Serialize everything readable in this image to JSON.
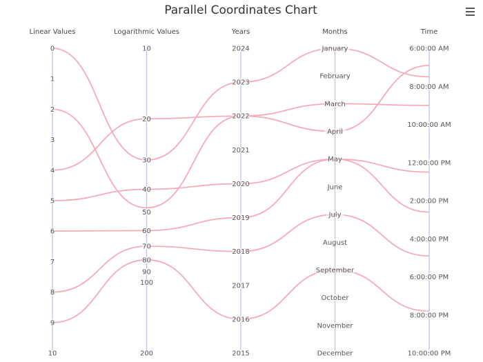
{
  "colors": {
    "series": "#f6aab8",
    "axis": "#b4c0e4",
    "menu": "#555555"
  },
  "icons": {
    "menu": "hamburger-menu-icon"
  },
  "chart_data": {
    "type": "parallel-coordinates",
    "title": "Parallel Coordinates Chart",
    "axes": [
      {
        "key": "linear",
        "title": "Linear Values",
        "scale": "linear",
        "range": [
          0,
          10
        ],
        "ticks": [
          "0",
          "1",
          "2",
          "3",
          "4",
          "5",
          "6",
          "7",
          "8",
          "9",
          "10"
        ],
        "tick_values": [
          0,
          1,
          2,
          3,
          4,
          5,
          6,
          7,
          8,
          9,
          10
        ]
      },
      {
        "key": "log",
        "title": "Logarithmic Values",
        "scale": "log",
        "range": [
          10,
          200
        ],
        "ticks": [
          "10",
          "20",
          "30",
          "40",
          "50",
          "60",
          "70",
          "80",
          "90",
          "100",
          "200"
        ],
        "tick_values": [
          10,
          20,
          30,
          40,
          50,
          60,
          70,
          80,
          90,
          100,
          200
        ]
      },
      {
        "key": "years",
        "title": "Years",
        "scale": "linear",
        "reversed": true,
        "range": [
          2015,
          2024
        ],
        "ticks": [
          "2024",
          "2023",
          "2022",
          "2021",
          "2020",
          "2019",
          "2018",
          "2017",
          "2016",
          "2015"
        ],
        "tick_values": [
          2024,
          2023,
          2022,
          2021,
          2020,
          2019,
          2018,
          2017,
          2016,
          2015
        ]
      },
      {
        "key": "months",
        "title": "Months",
        "scale": "category",
        "ticks": [
          "January",
          "February",
          "March",
          "April",
          "May",
          "June",
          "July",
          "August",
          "September",
          "October",
          "November",
          "December"
        ]
      },
      {
        "key": "time",
        "title": "Time",
        "scale": "linear",
        "range": [
          6,
          22
        ],
        "ticks": [
          "6:00:00 AM",
          "8:00:00 AM",
          "10:00:00 AM",
          "12:00:00 PM",
          "2:00:00 PM",
          "4:00:00 PM",
          "6:00:00 PM",
          "8:00:00 PM",
          "10:00:00 PM"
        ],
        "tick_values": [
          6,
          8,
          10,
          12,
          14,
          16,
          18,
          20,
          22
        ]
      }
    ],
    "series": [
      {
        "values": [
          0,
          30,
          2023,
          "January",
          7.5
        ]
      },
      {
        "values": [
          2,
          48,
          2022,
          "April",
          6.9
        ]
      },
      {
        "values": [
          4,
          20,
          2022,
          "March",
          9.0
        ]
      },
      {
        "values": [
          5,
          40,
          2020,
          "May",
          12.5
        ]
      },
      {
        "values": [
          6,
          60,
          2019,
          "May",
          14.6
        ]
      },
      {
        "values": [
          8,
          70,
          2018,
          "July",
          16.9
        ]
      },
      {
        "values": [
          9,
          80,
          2016,
          "September",
          19.8
        ]
      }
    ]
  }
}
